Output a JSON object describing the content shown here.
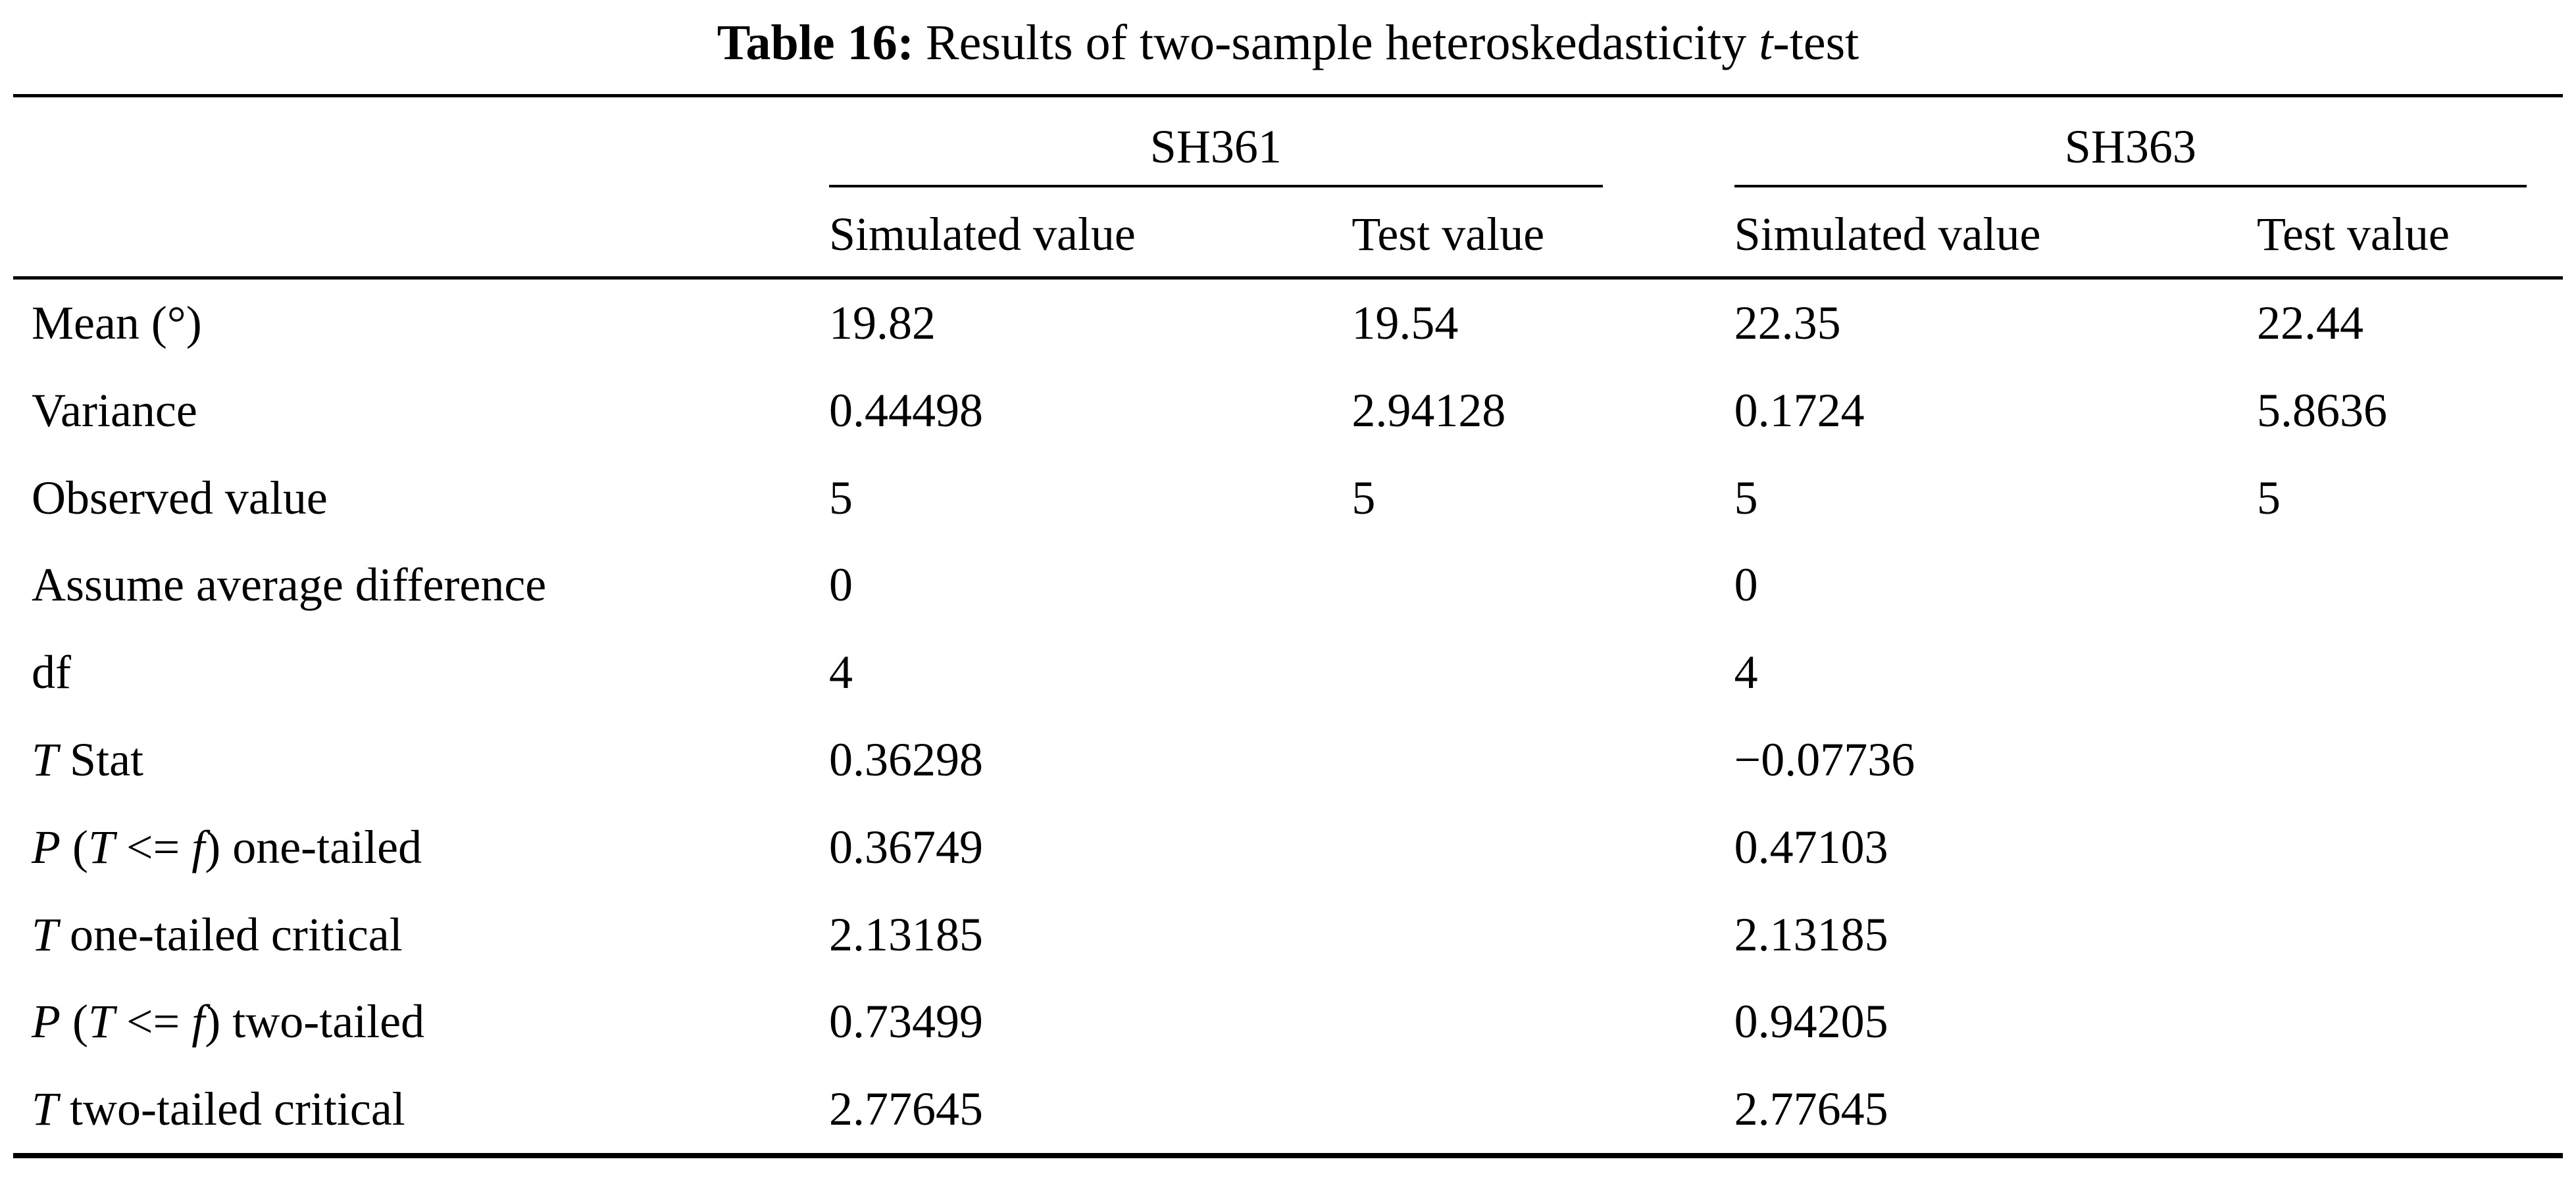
{
  "caption": {
    "label": "Table 16:",
    "text_html": "Results of two-sample heteroskedasticity <i>t</i>-test"
  },
  "table": {
    "groups": [
      {
        "label": "SH361"
      },
      {
        "label": "SH363"
      }
    ],
    "subheaders": [
      "Simulated value",
      "Test value",
      "Simulated value",
      "Test value"
    ],
    "rows": [
      {
        "label_html": "Mean (°)",
        "values": [
          "19.82",
          "19.54",
          "22.35",
          "22.44"
        ]
      },
      {
        "label_html": "Variance",
        "values": [
          "0.44498",
          "2.94128",
          "0.1724",
          "5.8636"
        ]
      },
      {
        "label_html": "Observed value",
        "values": [
          "5",
          "5",
          "5",
          "5"
        ]
      },
      {
        "label_html": "Assume average difference",
        "values": [
          "0",
          "",
          "0",
          ""
        ]
      },
      {
        "label_html": "df",
        "values": [
          "4",
          "",
          "4",
          ""
        ]
      },
      {
        "label_html": "<i>T</i> Stat",
        "values": [
          "0.36298",
          "",
          "−0.07736",
          ""
        ]
      },
      {
        "label_html": "<i>P</i> (<i>T</i> &lt;= <i>f</i>) one-tailed",
        "values": [
          "0.36749",
          "",
          "0.47103",
          ""
        ]
      },
      {
        "label_html": "<i>T</i> one-tailed critical",
        "values": [
          "2.13185",
          "",
          "2.13185",
          ""
        ]
      },
      {
        "label_html": "<i>P</i> (<i>T</i> &lt;= <i>f</i>) two-tailed",
        "values": [
          "0.73499",
          "",
          "0.94205",
          ""
        ]
      },
      {
        "label_html": "<i>T</i> two-tailed critical",
        "values": [
          "2.77645",
          "",
          "2.77645",
          ""
        ]
      }
    ]
  }
}
